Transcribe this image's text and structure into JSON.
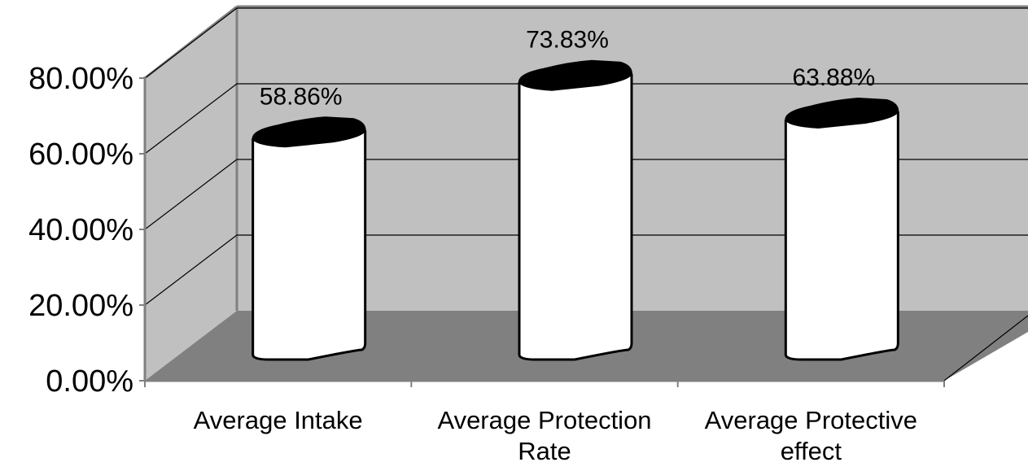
{
  "chart_data": {
    "type": "bar",
    "bar_shape": "3d-cylinder",
    "categories": [
      [
        "Average Intake"
      ],
      [
        "Average Protection",
        "Rate"
      ],
      [
        "Average Protective",
        "effect"
      ]
    ],
    "series": [
      {
        "values": [
          0.5886,
          0.7383,
          0.6388
        ]
      }
    ],
    "data_labels": [
      "58.86%",
      "73.83%",
      "63.88%"
    ],
    "y_ticks": [
      "0.00%",
      "20.00%",
      "40.00%",
      "60.00%",
      "80.00%"
    ],
    "ylim": [
      0,
      0.8
    ],
    "grid": true,
    "legend": "none",
    "colors": {
      "back_wall": "#c0c0c0",
      "floor": "#808080",
      "bar_body": "#ffffff",
      "bar_top": "#000000",
      "grid": "#000000",
      "wall_edge": "#808080"
    }
  }
}
